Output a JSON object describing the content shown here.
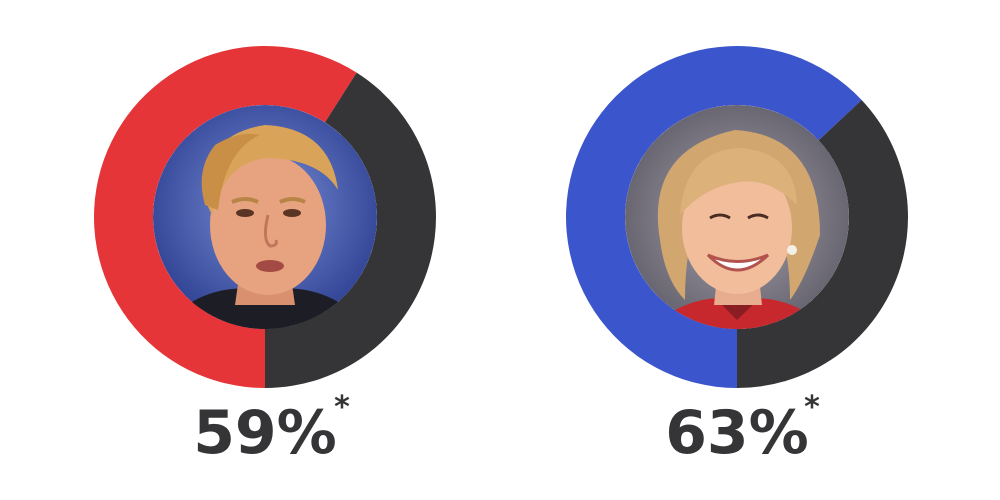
{
  "chart_data": [
    {
      "type": "pie",
      "style": "donut",
      "value": 59,
      "unit": "%",
      "label": "59%",
      "footnote_mark": "*",
      "fill_color": "#e63538",
      "remainder_color": "#353436",
      "center_image": "candidate-portrait-red"
    },
    {
      "type": "pie",
      "style": "donut",
      "value": 63,
      "unit": "%",
      "label": "63%",
      "footnote_mark": "*",
      "fill_color": "#3b55cc",
      "remainder_color": "#353436",
      "center_image": "candidate-portrait-blue"
    }
  ],
  "colors": {
    "text": "#353436",
    "background": "#ffffff"
  }
}
